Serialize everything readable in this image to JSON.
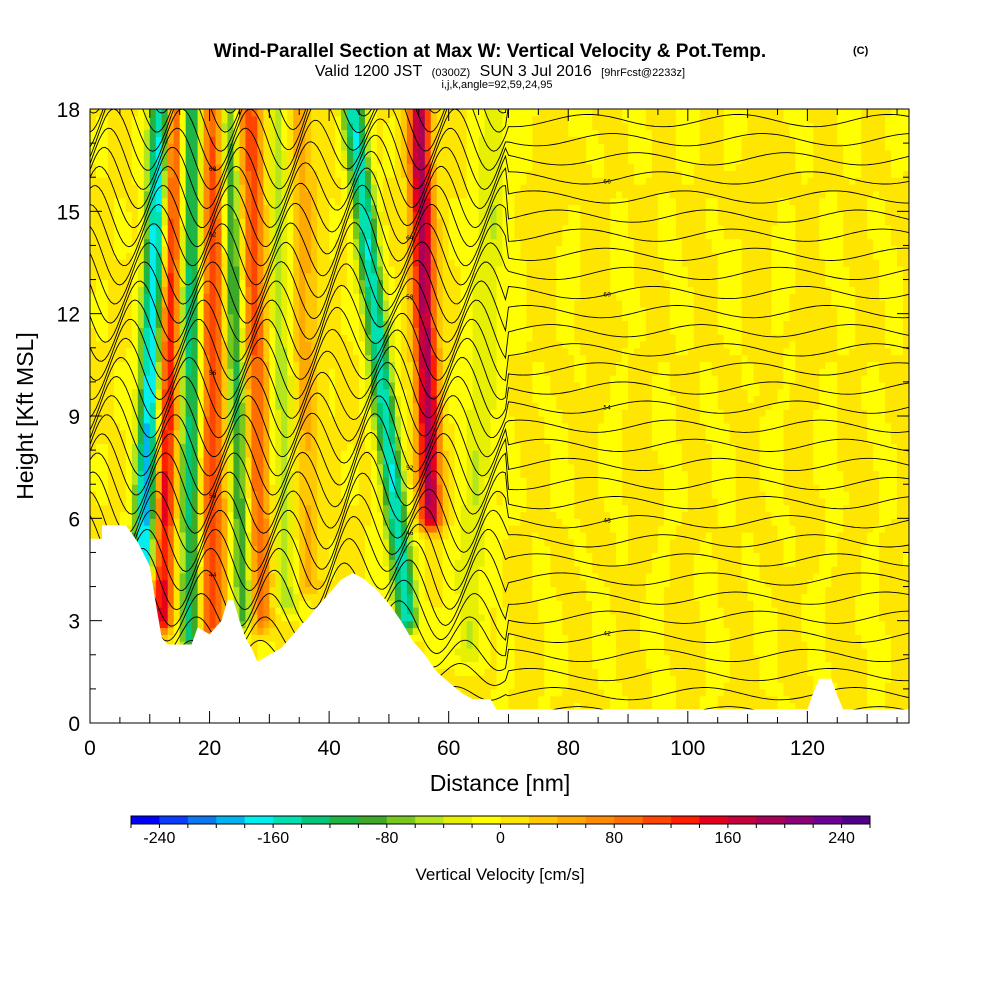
{
  "chart_data": {
    "type": "heatmap",
    "title": "Wind-Parallel Section at Max W: Vertical Velocity & Pot.Temp.",
    "title_mark": "(C)",
    "subtitle_main": "Valid 1200 JST",
    "subtitle_utc": "(0300Z)",
    "subtitle_date": "SUN 3 Jul 2016",
    "subtitle_fcst": "[9hrFcst@2233z]",
    "subtitle_line2": "i,j,k,angle=92,59,24,95",
    "xlabel": "Distance [nm]",
    "ylabel": "Height [Kft MSL]",
    "xlim": [
      0,
      137
    ],
    "ylim": [
      0,
      18
    ],
    "xticks": [
      "0",
      "20",
      "40",
      "60",
      "80",
      "100",
      "120"
    ],
    "xtick_values": [
      0,
      20,
      40,
      60,
      80,
      100,
      120
    ],
    "yticks": [
      "0",
      "3",
      "6",
      "9",
      "12",
      "15",
      "18"
    ],
    "ytick_values": [
      0,
      3,
      6,
      9,
      12,
      15,
      18
    ],
    "colorbar": {
      "title": "Vertical Velocity [cm/s]",
      "range": [
        -260,
        260
      ],
      "labels": [
        "-240",
        "-160",
        "-80",
        "0",
        "80",
        "160",
        "240"
      ],
      "label_values": [
        -240,
        -160,
        -80,
        0,
        80,
        160,
        240
      ],
      "colors": [
        "#0000ff",
        "#0a3cff",
        "#0a78f0",
        "#00b4f0",
        "#00f0f0",
        "#00e0b0",
        "#00c878",
        "#1eb446",
        "#3caa28",
        "#78c81e",
        "#b4e61e",
        "#e6f000",
        "#ffff00",
        "#ffe600",
        "#ffc800",
        "#ffaa00",
        "#ff8c00",
        "#ff6e00",
        "#ff4600",
        "#ff1e00",
        "#e6001e",
        "#c8003c",
        "#aa005a",
        "#8c0078",
        "#6e0096",
        "#50008c"
      ]
    },
    "velocity_features": [
      {
        "kind": "down",
        "x0": 9,
        "y0": 4.6,
        "x1": 12,
        "y1": 18,
        "value": -200
      },
      {
        "kind": "up",
        "x0": 12,
        "y0": 3.0,
        "x1": 14,
        "y1": 18,
        "value": 150
      },
      {
        "kind": "down",
        "x0": 17,
        "y0": 2.5,
        "x1": 17,
        "y1": 18,
        "value": -150
      },
      {
        "kind": "up",
        "x0": 20,
        "y0": 2.8,
        "x1": 21,
        "y1": 18,
        "value": 120
      },
      {
        "kind": "down",
        "x0": 26,
        "y0": 3.0,
        "x1": 23,
        "y1": 18,
        "value": -140
      },
      {
        "kind": "up",
        "x0": 28,
        "y0": 3.0,
        "x1": 27,
        "y1": 18,
        "value": 110
      },
      {
        "kind": "down",
        "x0": 33,
        "y0": 3.5,
        "x1": 31,
        "y1": 18,
        "value": -60
      },
      {
        "kind": "up",
        "x0": 36,
        "y0": 4.0,
        "x1": 35,
        "y1": 18,
        "value": 50
      },
      {
        "kind": "down",
        "x0": 53,
        "y0": 3.0,
        "x1": 44,
        "y1": 18,
        "value": -160
      },
      {
        "kind": "up",
        "x0": 57,
        "y0": 6.0,
        "x1": 55,
        "y1": 18,
        "value": 190
      },
      {
        "kind": "down",
        "x0": 63,
        "y0": 2.0,
        "x1": 68,
        "y1": 18,
        "value": -40
      }
    ],
    "contour_labels": [
      "38",
      "40",
      "42",
      "44",
      "46",
      "48",
      "50",
      "52",
      "54",
      "56",
      "58",
      "60",
      "62",
      "64",
      "66",
      "68",
      "70"
    ]
  }
}
